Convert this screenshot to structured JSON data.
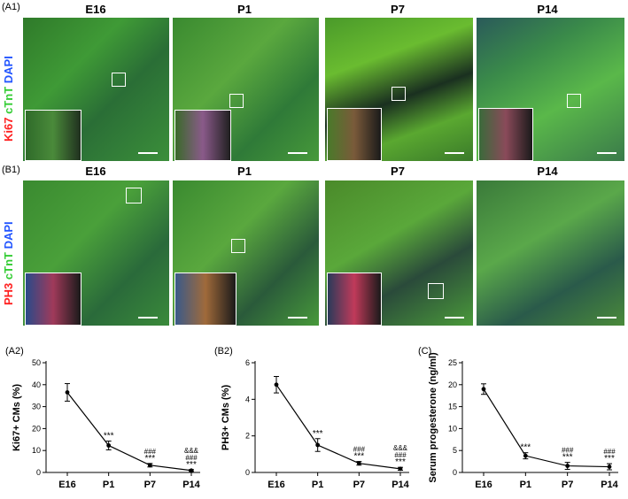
{
  "row_a": {
    "panel_label": "(A1)",
    "stain": {
      "red": "Ki67",
      "green": "cTnT",
      "blue": "DAPI"
    },
    "stages": [
      "E16",
      "P1",
      "P7",
      "P14"
    ]
  },
  "row_b": {
    "panel_label": "(B1)",
    "stain": {
      "red": "PH3",
      "green": "cTnT",
      "blue": "DAPI"
    },
    "stages": [
      "E16",
      "P1",
      "P7",
      "P14"
    ]
  },
  "colors": {
    "stain_red": "#ff2020",
    "stain_green": "#33cc33",
    "stain_blue": "#2255ff"
  },
  "chart_data": [
    {
      "type": "line",
      "panel_label": "(A2)",
      "ylabel": "Ki67+ CMs (%)",
      "categories": [
        "E16",
        "P1",
        "P7",
        "P14"
      ],
      "values": [
        36.5,
        12.3,
        3.3,
        0.9
      ],
      "errors": [
        4.0,
        2.0,
        0.8,
        0.4
      ],
      "ylim": [
        0,
        50
      ],
      "yticks": [
        "0",
        "10",
        "20",
        "30",
        "40",
        "50"
      ],
      "annotations": [
        {
          "category": "P1",
          "lines": [
            "***"
          ]
        },
        {
          "category": "P7",
          "lines": [
            "###",
            "***"
          ]
        },
        {
          "category": "P14",
          "lines": [
            "&&&",
            "###",
            "***"
          ]
        }
      ]
    },
    {
      "type": "line",
      "panel_label": "(B2)",
      "ylabel": "PH3+ CMs (%)",
      "categories": [
        "E16",
        "P1",
        "P7",
        "P14"
      ],
      "values": [
        4.8,
        1.5,
        0.5,
        0.2
      ],
      "errors": [
        0.45,
        0.35,
        0.1,
        0.08
      ],
      "ylim": [
        0,
        6
      ],
      "yticks": [
        "0",
        "2",
        "4",
        "6"
      ],
      "annotations": [
        {
          "category": "P1",
          "lines": [
            "***"
          ]
        },
        {
          "category": "P7",
          "lines": [
            "###",
            "***"
          ]
        },
        {
          "category": "P14",
          "lines": [
            "&&&",
            "###",
            "***"
          ]
        }
      ]
    },
    {
      "type": "line",
      "panel_label": "(C)",
      "ylabel": "Serum progesterone (ng/ml)",
      "categories": [
        "E16",
        "P1",
        "P7",
        "P14"
      ],
      "values": [
        19.0,
        3.8,
        1.5,
        1.3
      ],
      "errors": [
        1.2,
        0.7,
        0.8,
        0.7
      ],
      "ylim": [
        0,
        25
      ],
      "yticks": [
        "0",
        "5",
        "10",
        "15",
        "20",
        "25"
      ],
      "annotations": [
        {
          "category": "P1",
          "lines": [
            "***"
          ]
        },
        {
          "category": "P7",
          "lines": [
            "###",
            "***"
          ]
        },
        {
          "category": "P14",
          "lines": [
            "###",
            "***"
          ]
        }
      ]
    }
  ]
}
